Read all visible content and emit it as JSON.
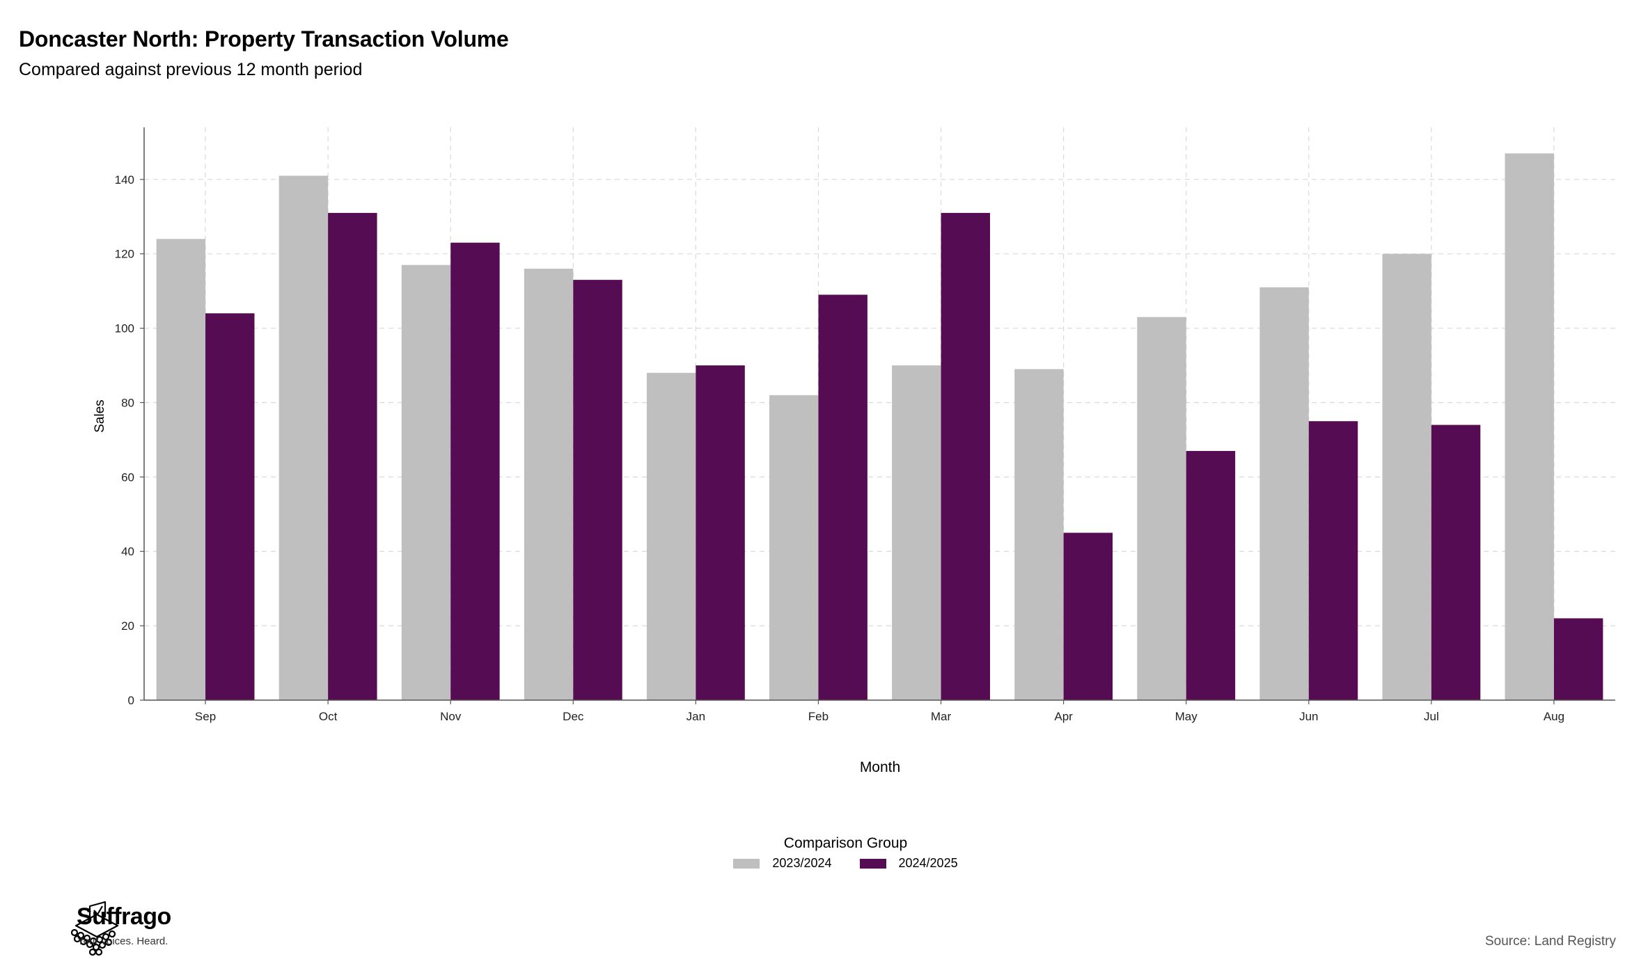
{
  "chart_data": {
    "type": "bar",
    "title": "Doncaster North: Property Transaction Volume",
    "subtitle": "Compared against previous 12 month period",
    "xlabel": "Month",
    "ylabel": "Sales",
    "categories": [
      "Sep",
      "Oct",
      "Nov",
      "Dec",
      "Jan",
      "Feb",
      "Mar",
      "Apr",
      "May",
      "Jun",
      "Jul",
      "Aug"
    ],
    "series": [
      {
        "name": "2023/2024",
        "color": "#bfbfbf",
        "values": [
          124,
          141,
          117,
          116,
          88,
          82,
          90,
          89,
          103,
          111,
          120,
          147
        ]
      },
      {
        "name": "2024/2025",
        "color": "#560c52",
        "values": [
          104,
          131,
          123,
          113,
          90,
          109,
          131,
          45,
          67,
          75,
          74,
          22
        ]
      }
    ],
    "ylim": [
      0,
      154
    ],
    "yticks": [
      0,
      20,
      40,
      60,
      80,
      100,
      120,
      140
    ],
    "grid": true,
    "legend": {
      "title": "Comparison Group",
      "position": "bottom"
    }
  },
  "footer": {
    "source": "Source: Land Registry",
    "brand_name": "Suffrago",
    "brand_tagline": "Your voices. Heard."
  }
}
